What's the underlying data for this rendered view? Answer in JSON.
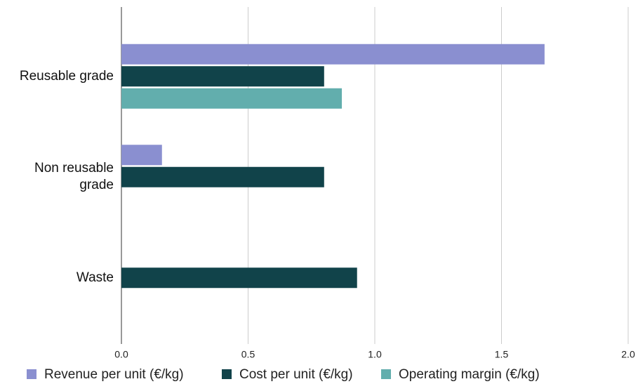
{
  "chart_data": {
    "type": "hbar",
    "categories": [
      "Reusable grade",
      "Non reusable grade",
      "Waste"
    ],
    "series": [
      {
        "name": "Revenue per unit (€/kg)",
        "color": "#8a8fd0",
        "values": [
          1.67,
          0.16,
          null
        ]
      },
      {
        "name": "Cost per unit (€/kg)",
        "color": "#11434a",
        "values": [
          0.8,
          0.8,
          0.93
        ]
      },
      {
        "name": "Operating margin (€/kg)",
        "color": "#62aead",
        "values": [
          0.87,
          null,
          null
        ]
      }
    ],
    "xlim": [
      0,
      2
    ],
    "xticks": [
      {
        "value": 0,
        "label": "0.0"
      },
      0.5,
      {
        "value": 1,
        "label": "1.0"
      },
      1.5,
      {
        "value": 2,
        "label": "2.0"
      }
    ],
    "grid": true,
    "legend": "bottom"
  }
}
